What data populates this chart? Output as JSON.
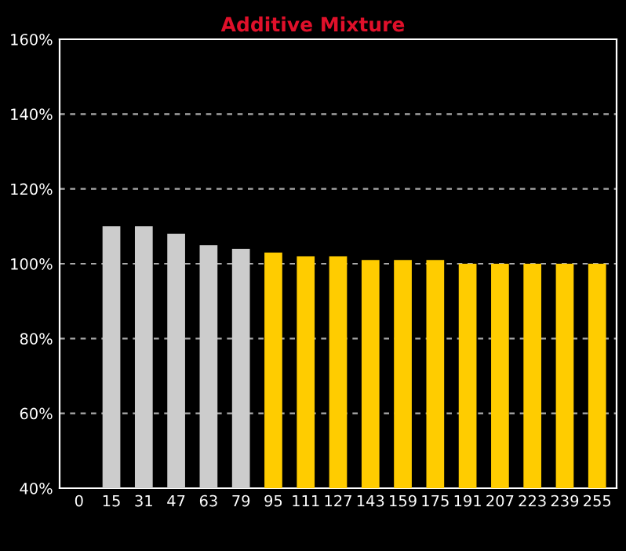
{
  "chart_data": {
    "type": "bar",
    "title": "Additive Mixture",
    "categories": [
      "0",
      "15",
      "31",
      "47",
      "63",
      "79",
      "95",
      "111",
      "127",
      "143",
      "159",
      "175",
      "191",
      "207",
      "223",
      "239",
      "255"
    ],
    "values": [
      null,
      110,
      110,
      108,
      105,
      104,
      103,
      102,
      102,
      101,
      101,
      101,
      100,
      100,
      100,
      100,
      100
    ],
    "colors": [
      "#cccccc",
      "#cccccc",
      "#cccccc",
      "#cccccc",
      "#cccccc",
      "#cccccc",
      "#ffcc00",
      "#ffcc00",
      "#ffcc00",
      "#ffcc00",
      "#ffcc00",
      "#ffcc00",
      "#ffcc00",
      "#ffcc00",
      "#ffcc00",
      "#ffcc00",
      "#ffcc00"
    ],
    "ylim": [
      40,
      160
    ],
    "yticks": [
      {
        "value": 40,
        "label": "40%"
      },
      {
        "value": 60,
        "label": "60%"
      },
      {
        "value": 80,
        "label": "80%"
      },
      {
        "value": 100,
        "label": "100%"
      },
      {
        "value": 120,
        "label": "120%"
      },
      {
        "value": 140,
        "label": "140%"
      },
      {
        "value": 160,
        "label": "160%"
      }
    ],
    "grid": "y"
  }
}
